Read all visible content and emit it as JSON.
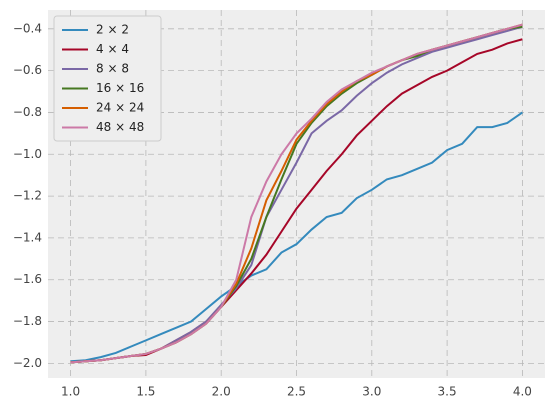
{
  "chart_data": {
    "type": "line",
    "x": [
      1.0,
      1.1,
      1.2,
      1.3,
      1.4,
      1.5,
      1.6,
      1.7,
      1.8,
      1.9,
      2.0,
      2.1,
      2.2,
      2.3,
      2.4,
      2.5,
      2.6,
      2.7,
      2.8,
      2.9,
      3.0,
      3.1,
      3.2,
      3.3,
      3.4,
      3.5,
      3.6,
      3.7,
      3.8,
      3.9,
      4.0
    ],
    "series": [
      {
        "name": "2 × 2",
        "color": "#348ABD",
        "values": [
          -1.99,
          -1.985,
          -1.97,
          -1.95,
          -1.92,
          -1.89,
          -1.86,
          -1.83,
          -1.8,
          -1.74,
          -1.68,
          -1.63,
          -1.58,
          -1.55,
          -1.47,
          -1.43,
          -1.36,
          -1.3,
          -1.28,
          -1.21,
          -1.17,
          -1.12,
          -1.1,
          -1.07,
          -1.04,
          -0.98,
          -0.95,
          -0.87,
          -0.87,
          -0.85,
          -0.8
        ]
      },
      {
        "name": "4 × 4",
        "color": "#A60628",
        "values": [
          -1.995,
          -1.99,
          -1.985,
          -1.975,
          -1.965,
          -1.96,
          -1.93,
          -1.89,
          -1.85,
          -1.8,
          -1.73,
          -1.65,
          -1.57,
          -1.48,
          -1.37,
          -1.26,
          -1.17,
          -1.08,
          -1.0,
          -0.91,
          -0.84,
          -0.77,
          -0.71,
          -0.67,
          -0.63,
          -0.6,
          -0.56,
          -0.52,
          -0.5,
          -0.47,
          -0.45
        ]
      },
      {
        "name": "8 × 8",
        "color": "#7A68A6",
        "values": [
          -1.995,
          -1.99,
          -1.985,
          -1.975,
          -1.965,
          -1.955,
          -1.93,
          -1.89,
          -1.85,
          -1.8,
          -1.72,
          -1.64,
          -1.53,
          -1.3,
          -1.17,
          -1.04,
          -0.9,
          -0.84,
          -0.79,
          -0.72,
          -0.66,
          -0.61,
          -0.57,
          -0.54,
          -0.51,
          -0.49,
          -0.47,
          -0.45,
          -0.43,
          -0.41,
          -0.39
        ]
      },
      {
        "name": "16 × 16",
        "color": "#467821",
        "values": [
          -1.995,
          -1.99,
          -1.985,
          -1.975,
          -1.965,
          -1.955,
          -1.93,
          -1.9,
          -1.86,
          -1.81,
          -1.73,
          -1.63,
          -1.5,
          -1.3,
          -1.12,
          -0.95,
          -0.85,
          -0.77,
          -0.71,
          -0.66,
          -0.62,
          -0.58,
          -0.55,
          -0.53,
          -0.5,
          -0.48,
          -0.46,
          -0.44,
          -0.42,
          -0.4,
          -0.39
        ]
      },
      {
        "name": "24 × 24",
        "color": "#D55E00",
        "values": [
          -1.995,
          -1.99,
          -1.985,
          -1.975,
          -1.965,
          -1.955,
          -1.93,
          -1.9,
          -1.86,
          -1.81,
          -1.73,
          -1.62,
          -1.45,
          -1.22,
          -1.08,
          -0.93,
          -0.84,
          -0.76,
          -0.7,
          -0.65,
          -0.62,
          -0.58,
          -0.55,
          -0.52,
          -0.5,
          -0.48,
          -0.46,
          -0.44,
          -0.42,
          -0.4,
          -0.38
        ]
      },
      {
        "name": "48 × 48",
        "color": "#CC79A7",
        "values": [
          -1.995,
          -1.99,
          -1.985,
          -1.975,
          -1.965,
          -1.955,
          -1.93,
          -1.9,
          -1.86,
          -1.81,
          -1.73,
          -1.6,
          -1.3,
          -1.13,
          -1.0,
          -0.9,
          -0.83,
          -0.75,
          -0.69,
          -0.65,
          -0.61,
          -0.58,
          -0.55,
          -0.52,
          -0.5,
          -0.48,
          -0.46,
          -0.44,
          -0.42,
          -0.4,
          -0.38
        ]
      }
    ],
    "xlim": [
      0.85,
      4.15
    ],
    "ylim": [
      -2.07,
      -0.31
    ],
    "xticks": [
      {
        "value": 1.0,
        "label": "1.0"
      },
      {
        "value": 1.5,
        "label": "1.5"
      },
      {
        "value": 2.0,
        "label": "2.0"
      },
      {
        "value": 2.5,
        "label": "2.5"
      },
      {
        "value": 3.0,
        "label": "3.0"
      },
      {
        "value": 3.5,
        "label": "3.5"
      },
      {
        "value": 4.0,
        "label": "4.0"
      }
    ],
    "yticks": [
      {
        "value": -2.0,
        "label": "−2.0"
      },
      {
        "value": -1.8,
        "label": "−1.8"
      },
      {
        "value": -1.6,
        "label": "−1.6"
      },
      {
        "value": -1.4,
        "label": "−1.4"
      },
      {
        "value": -1.2,
        "label": "−1.2"
      },
      {
        "value": -1.0,
        "label": "−1.0"
      },
      {
        "value": -0.8,
        "label": "−0.8"
      },
      {
        "value": -0.6,
        "label": "−0.6"
      },
      {
        "value": -0.4,
        "label": "−0.4"
      }
    ],
    "grid": true,
    "legend": "upper-left"
  }
}
